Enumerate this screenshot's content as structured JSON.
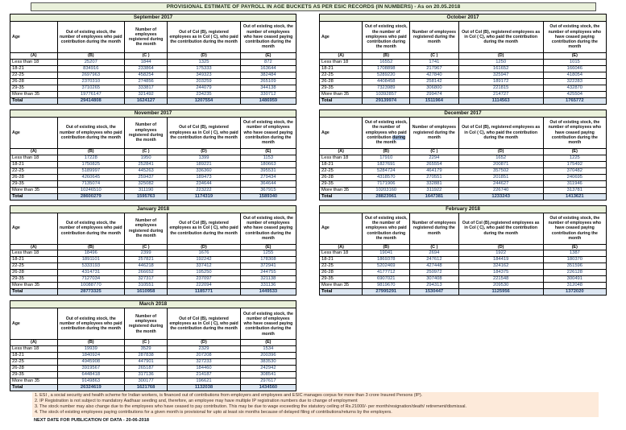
{
  "title": "PROVISIONAL ESTIMATE OF PAYROLL IN AGE BUCKETS AS PER ESIC RECORDS (IN NUMBERS) - As on 20.05.2018",
  "letters_row": [
    "(A)",
    "(B)",
    "(C )",
    "(D)",
    "(E)"
  ],
  "common_headers": {
    "age": "Age",
    "b": "Out of existing stock, the number of employees who paid contribution during the month",
    "c": "Number of employees registered during the month",
    "d": "Out of Col (B), registered employees as in Col ( C), who paid the contribution during the month",
    "e": "Out of existing stock, the number of employees who have ceased paying contribution during the month"
  },
  "tables": [
    {
      "month": "September 2017",
      "rows": [
        {
          "age": "Less than 18",
          "b": "25207",
          "c": "1844",
          "d": "1325",
          "e": "872"
        },
        {
          "age": "18-21",
          "b": "834916",
          "c": "233864",
          "d": "175333",
          "e": "163644"
        },
        {
          "age": "22-25",
          "b": "2697963",
          "c": "458254",
          "d": "349323",
          "e": "382484"
        },
        {
          "age": "26-28",
          "b": "2370310",
          "c": "274856",
          "d": "203259",
          "e": "265109"
        },
        {
          "age": "29-35",
          "b": "3710265",
          "c": "333817",
          "d": "244079",
          "e": "344138"
        },
        {
          "age": "More than 35",
          "b": "19776147",
          "c": "321492",
          "d": "234235",
          "e": "330712"
        }
      ],
      "total": {
        "age": "Total",
        "b": "29414808",
        "c": "1624127",
        "d": "1207554",
        "e": "1486959"
      }
    },
    {
      "month": "October 2017",
      "rows": [
        {
          "age": "Less than 18",
          "b": "16552",
          "c": "1741",
          "d": "1250",
          "e": "1015"
        },
        {
          "age": "18-21",
          "b": "1708898",
          "c": "217967",
          "d": "161652",
          "e": "166046"
        },
        {
          "age": "22-25",
          "b": "5289220",
          "c": "427840",
          "d": "325947",
          "e": "418054"
        },
        {
          "age": "26-28",
          "b": "4408458",
          "c": "258142",
          "d": "189172",
          "e": "322283"
        },
        {
          "age": "29-35",
          "b": "7323989",
          "c": "306800",
          "d": "221815",
          "e": "432870"
        },
        {
          "age": "More than 35",
          "b": "10392857",
          "c": "299474",
          "d": "214727",
          "e": "425504"
        }
      ],
      "total": {
        "age": "Total",
        "b": "29139974",
        "c": "1511964",
        "d": "1114563",
        "e": "1765772"
      }
    },
    {
      "month": "November 2017",
      "rows": [
        {
          "age": "Less than 18",
          "b": "17228",
          "c": "1950",
          "d": "1399",
          "e": "1153"
        },
        {
          "age": "18-21",
          "b": "1750825",
          "c": "252841",
          "d": "189221",
          "e": "180663"
        },
        {
          "age": "22-25",
          "b": "5189997",
          "c": "445263",
          "d": "336360",
          "e": "395531"
        },
        {
          "age": "26-28",
          "b": "4260645",
          "c": "259437",
          "d": "189473",
          "e": "279434"
        },
        {
          "age": "29-35",
          "b": "7135074",
          "c": "325082",
          "d": "234644",
          "e": "364644"
        },
        {
          "age": "More than 35",
          "b": "10246510",
          "c": "311190",
          "d": "223222",
          "e": "367915"
        }
      ],
      "total": {
        "age": "Total",
        "b": "28600279",
        "c": "1595763",
        "d": "1174319",
        "e": "1589340"
      }
    },
    {
      "month": "December 2017",
      "highlight_b_word": "during",
      "rows": [
        {
          "age": "Less than 18",
          "b": "17910",
          "c": "2294",
          "d": "1652",
          "e": "1225"
        },
        {
          "age": "18-21",
          "b": "1827691",
          "c": "265554",
          "d": "200871",
          "e": "175492"
        },
        {
          "age": "22-25",
          "b": "5284724",
          "c": "464179",
          "d": "357502",
          "e": "370482"
        },
        {
          "age": "26-28",
          "b": "4318570",
          "c": "270551",
          "d": "201851",
          "e": "240695"
        },
        {
          "age": "29-35",
          "b": "7171906",
          "c": "332881",
          "d": "244627",
          "e": "311946"
        },
        {
          "age": "More than 35",
          "b": "10203160",
          "c": "311922",
          "d": "226740",
          "e": "313781"
        }
      ],
      "total": {
        "age": "Total",
        "b": "28823961",
        "c": "1647381",
        "d": "1233243",
        "e": "1413621"
      }
    },
    {
      "month": "January 2018",
      "rows": [
        {
          "age": "Less than 18",
          "b": "18496",
          "c": "2399",
          "d": "1676",
          "e": "1255"
        },
        {
          "age": "18-21",
          "b": "1891101",
          "c": "257821",
          "d": "192242",
          "e": "178308"
        },
        {
          "age": "22-25",
          "b": "5333193",
          "c": "446218",
          "d": "337412",
          "e": "372941"
        },
        {
          "age": "26-28",
          "b": "4314731",
          "c": "266652",
          "d": "195250",
          "e": "244755"
        },
        {
          "age": "29-35",
          "b": "7127034",
          "c": "327317",
          "d": "237097",
          "e": "321138"
        },
        {
          "age": "More than 35",
          "b": "10088770",
          "c": "310551",
          "d": "222094",
          "e": "331136"
        }
      ],
      "total": {
        "age": "Total",
        "b": "28773325",
        "c": "1610958",
        "d": "1185771",
        "e": "1449533"
      }
    },
    {
      "month": "February 2018",
      "headers": {
        "d": "Out of Col (B),registered employees as in Col ( C), who paid the contribution during the month"
      },
      "rows": [
        {
          "age": "Less than 18",
          "b": "19041",
          "c": "2694",
          "d": "1922",
          "e": "1387"
        },
        {
          "age": "18-21",
          "b": "1869378",
          "c": "247612",
          "d": "184419",
          "e": "180370"
        },
        {
          "age": "22-25",
          "b": "5202469",
          "c": "427448",
          "d": "324162",
          "e": "351596"
        },
        {
          "age": "26-28",
          "b": "4177712",
          "c": "250972",
          "d": "184375",
          "e": "226128"
        },
        {
          "age": "29-35",
          "b": "6907021",
          "c": "307408",
          "d": "221548",
          "e": "300491"
        },
        {
          "age": "More than 35",
          "b": "9819670",
          "c": "294313",
          "d": "209530",
          "e": "312048"
        }
      ],
      "total": {
        "age": "Total",
        "b": "27995291",
        "c": "1530447",
        "d": "1125956",
        "e": "1372020"
      }
    },
    {
      "month": "March 2018",
      "rows": [
        {
          "age": "Less than 18",
          "b": "19939",
          "c": "3529",
          "d": "2329",
          "e": "1534"
        },
        {
          "age": "18-21",
          "b": "1840924",
          "c": "287838",
          "d": "207208",
          "e": "200396"
        },
        {
          "age": "22-25",
          "b": "4945908",
          "c": "447901",
          "d": "327233",
          "e": "383530"
        },
        {
          "age": "26-28",
          "b": "3919567",
          "c": "265187",
          "d": "184460",
          "e": "242942"
        },
        {
          "age": "29-35",
          "b": "6448418",
          "c": "317136",
          "d": "214187",
          "e": "308541"
        },
        {
          "age": "More than 35",
          "b": "9149863",
          "c": "300177",
          "d": "196621",
          "e": "297617"
        }
      ],
      "total": {
        "age": "Total",
        "b": "26324619",
        "c": "1621768",
        "d": "1132038",
        "e": "1434560"
      }
    }
  ],
  "footnotes": [
    "1. ESI , a social security and health scheme for Indian workers, is financed out of contributions from employers and employees and ESIC manages corpus for more than 3 crore Insured Persons (IP).",
    "2. IP Registration is not subject to mandatory Aadhaar seeding and, therefore, an employee may have multiple IP registration numbers due to change of employment",
    "3. The stock number may also change due to the employees who have ceased to pay contribution. This may  be due to wage exceeding the statutory ceiling of  Rs.21000/- per month/resignation/death/ retirement/dismissal.",
    "4. The stock of existing employees paying contributions for a given month is provisional for upto at least six months because of delayed filing of contributions/returns by the employers."
  ],
  "next_date": "NEXT DATE FOR PUBLICATION OF DATA - 20-06-2018"
}
